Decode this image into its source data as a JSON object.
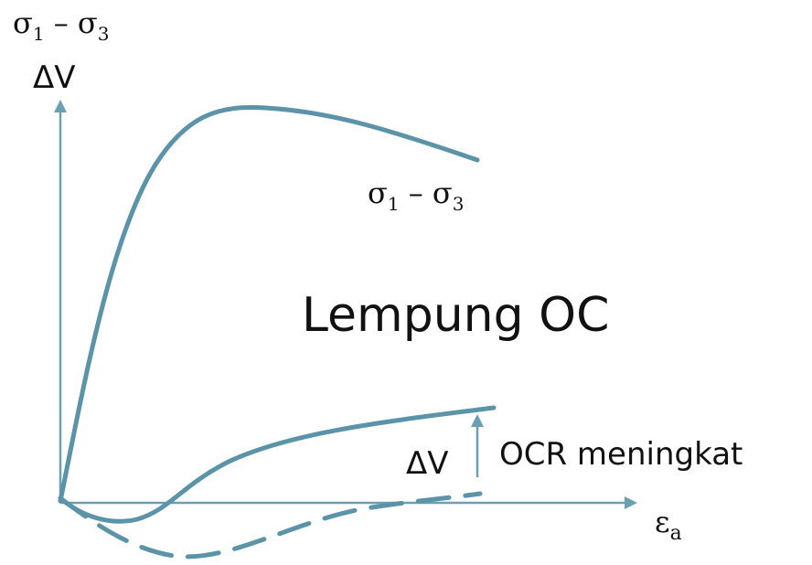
{
  "colors": {
    "curve": "#5b93a8",
    "axis": "#6ba0b4",
    "text": "#111111"
  },
  "labels": {
    "y_axis_top": "σ",
    "y_axis_top_sub1": "1",
    "y_axis_top_dash": " – σ",
    "y_axis_top_sub3": "3",
    "y_axis_second": "ΔV",
    "curve_label": "σ",
    "curve_label_sub1": "1",
    "curve_label_dash": " – σ",
    "curve_label_sub3": "3",
    "title": "Lempung OC",
    "dv_label": "ΔV",
    "ocr_label": "OCR meningkat",
    "x_axis": "ε",
    "x_axis_sub": "a"
  },
  "legend": {
    "dashed_curve": "dashed line",
    "arrow": "up-arrow"
  }
}
